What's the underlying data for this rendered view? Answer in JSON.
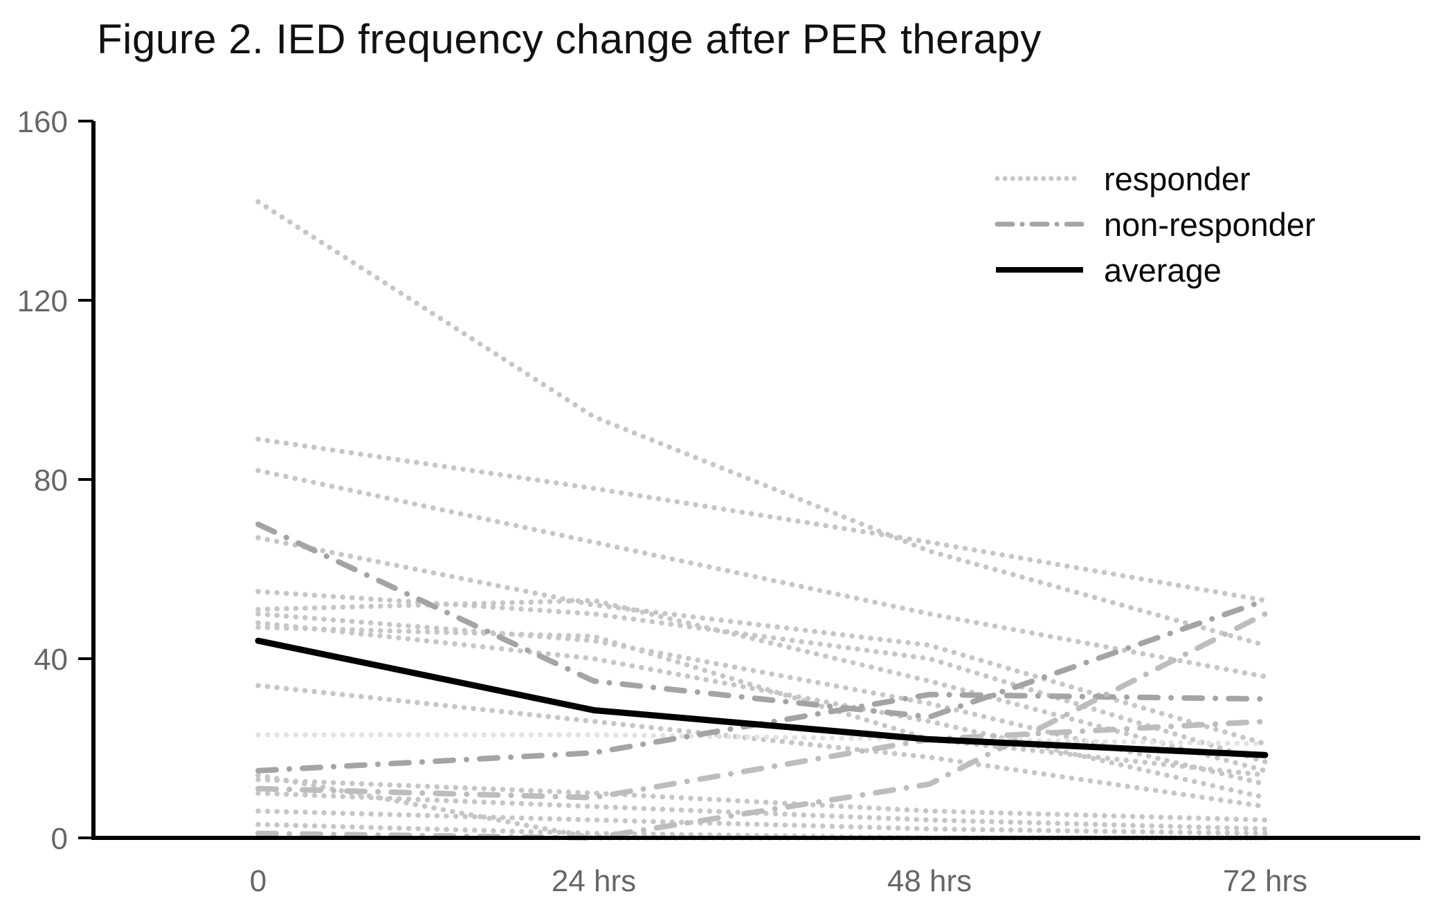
{
  "title": "Figure 2. IED frequency change after PER therapy",
  "legend": {
    "items": [
      {
        "label": "responder",
        "style": "dotted"
      },
      {
        "label": "non-responder",
        "style": "dashdot"
      },
      {
        "label": "average",
        "style": "solid"
      }
    ]
  },
  "colors": {
    "responder": "#c6c6c6",
    "responder_light": "#e2e2e2",
    "non_responder": "#a4a4a4",
    "average": "#000000",
    "axis": "#000000",
    "tick_label": "#666666",
    "title_text": "#111111"
  },
  "chart_data": {
    "type": "line",
    "title": "Figure 2. IED frequency change after PER therapy",
    "xlabel": "",
    "ylabel": "",
    "x_categories": [
      "0",
      "24 hrs",
      "48 hrs",
      "72 hrs"
    ],
    "y_ticks": [
      0,
      40,
      80,
      120,
      160
    ],
    "ylim": [
      0,
      160
    ],
    "grid": false,
    "legend_position": "top-right",
    "legend_entries": [
      "responder",
      "non-responder",
      "average"
    ],
    "series": [
      {
        "name": "responder-1",
        "group": "responder",
        "style": "dotted",
        "values": [
          142,
          94,
          64,
          43
        ]
      },
      {
        "name": "responder-2",
        "group": "responder",
        "style": "dotted",
        "values": [
          89,
          78,
          66,
          53
        ]
      },
      {
        "name": "responder-3",
        "group": "responder",
        "style": "dotted",
        "values": [
          82,
          66,
          50,
          36
        ]
      },
      {
        "name": "responder-4",
        "group": "responder",
        "style": "dotted",
        "values": [
          67,
          52,
          43,
          21
        ]
      },
      {
        "name": "responder-5",
        "group": "responder",
        "style": "dotted",
        "values": [
          55,
          50,
          40,
          17
        ]
      },
      {
        "name": "responder-6",
        "group": "responder",
        "style": "dotted",
        "values": [
          51,
          53,
          35,
          15
        ]
      },
      {
        "name": "responder-7",
        "group": "responder",
        "style": "dotted",
        "values": [
          50,
          44,
          30,
          12
        ]
      },
      {
        "name": "responder-8",
        "group": "responder",
        "style": "dotted",
        "values": [
          48,
          40,
          26,
          9
        ]
      },
      {
        "name": "responder-9",
        "group": "responder",
        "style": "dotted",
        "values": [
          47,
          45,
          22,
          14
        ]
      },
      {
        "name": "responder-10",
        "group": "responder",
        "style": "dotted",
        "values": [
          34,
          26,
          18,
          7
        ]
      },
      {
        "name": "responder-11",
        "group": "responder",
        "style": "dotted",
        "light": true,
        "values": [
          23,
          23,
          22,
          21
        ]
      },
      {
        "name": "responder-12",
        "group": "responder",
        "style": "dotted",
        "values": [
          13,
          10,
          6,
          4
        ]
      },
      {
        "name": "responder-13",
        "group": "responder",
        "style": "dotted",
        "values": [
          10,
          7,
          4,
          2
        ]
      },
      {
        "name": "responder-14",
        "group": "responder",
        "style": "dotted",
        "values": [
          6,
          4,
          2,
          1
        ]
      },
      {
        "name": "responder-15",
        "group": "responder",
        "style": "dotted",
        "values": [
          14,
          0,
          0,
          0
        ]
      },
      {
        "name": "responder-16",
        "group": "responder",
        "style": "dotted",
        "values": [
          3,
          1,
          0,
          0
        ]
      },
      {
        "name": "non-responder-1",
        "group": "non-responder",
        "style": "dashdot",
        "values": [
          70,
          35,
          27,
          53
        ]
      },
      {
        "name": "non-responder-2",
        "group": "non-responder",
        "style": "dashdot",
        "values": [
          15,
          19,
          32,
          31
        ]
      },
      {
        "name": "non-responder-3",
        "group": "non-responder",
        "style": "dashdot",
        "light": true,
        "values": [
          11,
          9,
          22,
          26
        ]
      },
      {
        "name": "non-responder-4",
        "group": "non-responder",
        "style": "dashdot",
        "light": true,
        "values": [
          1,
          0,
          12,
          50
        ]
      },
      {
        "name": "average",
        "group": "average",
        "style": "solid",
        "values": [
          44,
          28.5,
          22,
          18.5
        ]
      }
    ]
  }
}
